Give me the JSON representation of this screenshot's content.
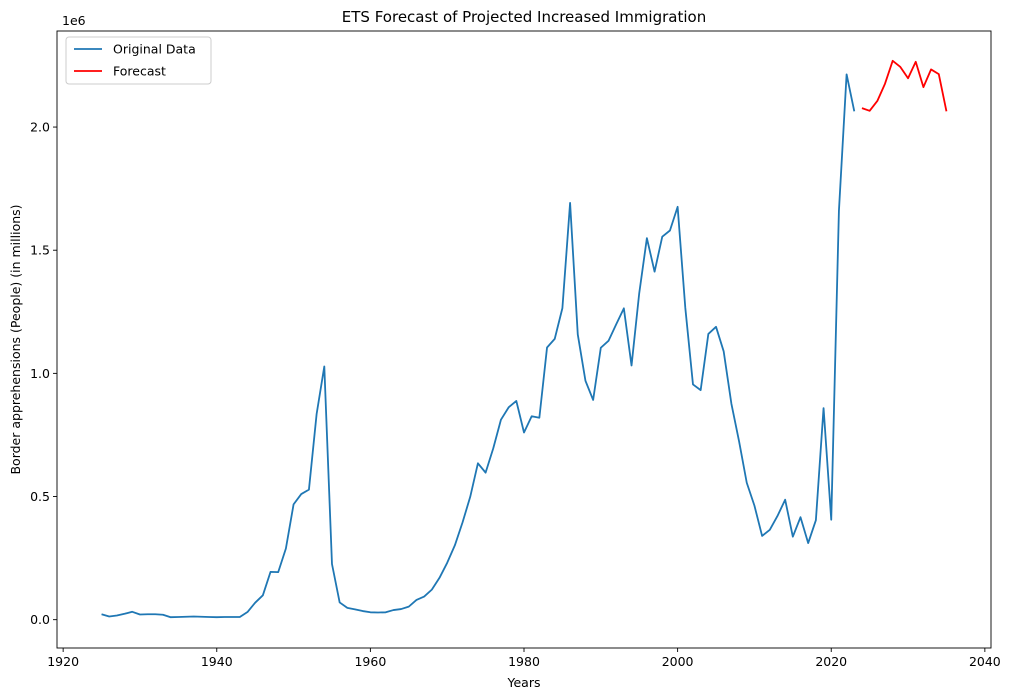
{
  "chart_data": {
    "type": "line",
    "title": "ETS Forecast of Projected Increased Immigration",
    "xlabel": "Years",
    "ylabel": "Border apprehensions (People) (in millions)",
    "y_offset_label": "1e6",
    "xlim": [
      1919.2,
      2040.8
    ],
    "ylim": [
      -115000,
      2390000
    ],
    "x_ticks": [
      1920,
      1940,
      1960,
      1980,
      2000,
      2020,
      2040
    ],
    "x_tick_labels": [
      "1920",
      "1940",
      "1960",
      "1980",
      "2000",
      "2020",
      "2040"
    ],
    "y_ticks": [
      0,
      500000,
      1000000,
      1500000,
      2000000
    ],
    "y_tick_labels": [
      "0.0",
      "0.5",
      "1.0",
      "1.5",
      "2.0"
    ],
    "grid": false,
    "legend_position": "top-left",
    "series": [
      {
        "name": "Original Data",
        "color": "#1f77b4",
        "x": [
          1925,
          1926,
          1927,
          1928,
          1929,
          1930,
          1931,
          1932,
          1933,
          1934,
          1935,
          1936,
          1937,
          1938,
          1939,
          1940,
          1941,
          1942,
          1943,
          1944,
          1945,
          1946,
          1947,
          1948,
          1949,
          1950,
          1951,
          1952,
          1953,
          1954,
          1955,
          1956,
          1957,
          1958,
          1959,
          1960,
          1961,
          1962,
          1963,
          1964,
          1965,
          1966,
          1967,
          1968,
          1969,
          1970,
          1971,
          1972,
          1973,
          1974,
          1975,
          1976,
          1977,
          1978,
          1979,
          1980,
          1981,
          1982,
          1983,
          1984,
          1985,
          1986,
          1987,
          1988,
          1989,
          1990,
          1991,
          1992,
          1993,
          1994,
          1995,
          1996,
          1997,
          1998,
          1999,
          2000,
          2001,
          2002,
          2003,
          2004,
          2005,
          2006,
          2007,
          2008,
          2009,
          2010,
          2011,
          2012,
          2013,
          2014,
          2015,
          2016,
          2017,
          2018,
          2019,
          2020,
          2021,
          2022,
          2023
        ],
        "y": [
          22000,
          13000,
          17000,
          24000,
          32000,
          21000,
          22000,
          22000,
          20000,
          10000,
          11000,
          12000,
          13000,
          12000,
          11000,
          10000,
          11000,
          11000,
          11000,
          31000,
          69000,
          99000,
          194000,
          193000,
          289000,
          468000,
          510000,
          528000,
          835000,
          1028000,
          226000,
          70000,
          48000,
          42000,
          35000,
          30000,
          29000,
          30000,
          39000,
          43000,
          53000,
          80000,
          94000,
          122000,
          170000,
          231000,
          302000,
          395000,
          499000,
          635000,
          597000,
          696000,
          812000,
          862000,
          888000,
          760000,
          826000,
          820000,
          1105000,
          1140000,
          1265000,
          1692000,
          1158000,
          970000,
          892000,
          1104000,
          1132000,
          1199000,
          1264000,
          1032000,
          1325000,
          1549000,
          1413000,
          1555000,
          1580000,
          1676000,
          1266000,
          955000,
          932000,
          1160000,
          1189000,
          1089000,
          877000,
          724000,
          556000,
          463000,
          340000,
          365000,
          421000,
          487000,
          337000,
          416000,
          311000,
          404000,
          859000,
          406000,
          1660000,
          2214000,
          2064000
        ]
      },
      {
        "name": "Forecast",
        "color": "#ff0000",
        "x": [
          2024,
          2025,
          2026,
          2027,
          2028,
          2029,
          2030,
          2031,
          2032,
          2033,
          2034,
          2035
        ],
        "y": [
          2077000,
          2066000,
          2106000,
          2176000,
          2269000,
          2244000,
          2198000,
          2265000,
          2162000,
          2234000,
          2215000,
          2064000
        ]
      }
    ]
  }
}
